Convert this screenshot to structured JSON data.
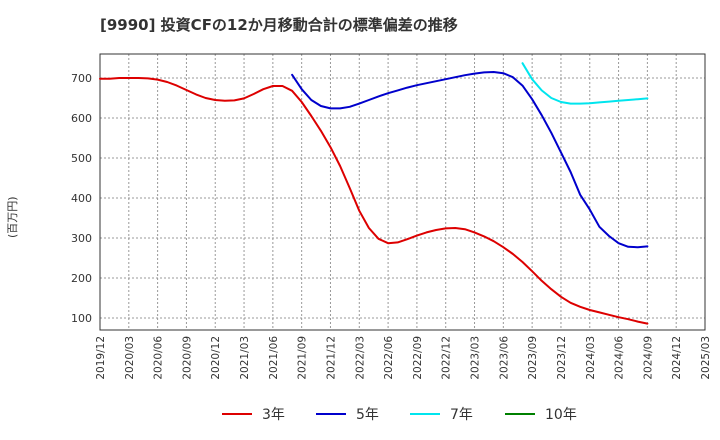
{
  "chart_data": {
    "type": "line",
    "title": "[9990]  投資CFの12か月移動合計の標準偏差の推移",
    "ylabel": "(百万円)",
    "xlabel": "",
    "ylim": [
      70,
      760
    ],
    "yticks": [
      100,
      200,
      300,
      400,
      500,
      600,
      700
    ],
    "grid": true,
    "legend_position": "bottom",
    "x_tick_labels": [
      "2019/12",
      "2020/03",
      "2020/06",
      "2020/09",
      "2020/12",
      "2021/03",
      "2021/06",
      "2021/09",
      "2021/12",
      "2022/03",
      "2022/06",
      "2022/09",
      "2022/12",
      "2023/03",
      "2023/06",
      "2023/09",
      "2023/12",
      "2024/03",
      "2024/06",
      "2024/09",
      "2024/12",
      "2025/03"
    ],
    "series": [
      {
        "name": "3年",
        "color": "#dd0000",
        "x": [
          "2019/12",
          "2020/01",
          "2020/02",
          "2020/03",
          "2020/04",
          "2020/05",
          "2020/06",
          "2020/07",
          "2020/08",
          "2020/09",
          "2020/10",
          "2020/11",
          "2020/12",
          "2021/01",
          "2021/02",
          "2021/03",
          "2021/04",
          "2021/05",
          "2021/06",
          "2021/07",
          "2021/08",
          "2021/09",
          "2021/10",
          "2021/11",
          "2021/12",
          "2022/01",
          "2022/02",
          "2022/03",
          "2022/04",
          "2022/05",
          "2022/06",
          "2022/07",
          "2022/08",
          "2022/09",
          "2022/10",
          "2022/11",
          "2022/12",
          "2023/01",
          "2023/02",
          "2023/03",
          "2023/04",
          "2023/05",
          "2023/06",
          "2023/07",
          "2023/08",
          "2023/09",
          "2023/10",
          "2023/11",
          "2023/12",
          "2024/01",
          "2024/02",
          "2024/03",
          "2024/04",
          "2024/05",
          "2024/06",
          "2024/07",
          "2024/08",
          "2024/09"
        ],
        "values": [
          698,
          698,
          700,
          700,
          700,
          699,
          696,
          690,
          681,
          670,
          659,
          650,
          645,
          643,
          644,
          649,
          660,
          672,
          680,
          680,
          668,
          640,
          605,
          568,
          527,
          480,
          425,
          368,
          325,
          298,
          287,
          289,
          297,
          306,
          314,
          320,
          324,
          325,
          322,
          314,
          304,
          292,
          277,
          260,
          240,
          217,
          193,
          172,
          153,
          138,
          128,
          120,
          114,
          108,
          102,
          97,
          91,
          86
        ]
      },
      {
        "name": "5年",
        "color": "#0000cc",
        "x": [
          "2021/08",
          "2021/09",
          "2021/10",
          "2021/11",
          "2021/12",
          "2022/01",
          "2022/02",
          "2022/03",
          "2022/04",
          "2022/05",
          "2022/06",
          "2022/07",
          "2022/08",
          "2022/09",
          "2022/10",
          "2022/11",
          "2022/12",
          "2023/01",
          "2023/02",
          "2023/03",
          "2023/04",
          "2023/05",
          "2023/06",
          "2023/07",
          "2023/08",
          "2023/09",
          "2023/10",
          "2023/11",
          "2023/12",
          "2024/01",
          "2024/02",
          "2024/03",
          "2024/04",
          "2024/05",
          "2024/06",
          "2024/07",
          "2024/08",
          "2024/09"
        ],
        "values": [
          708,
          672,
          645,
          630,
          624,
          624,
          628,
          636,
          645,
          654,
          662,
          669,
          676,
          682,
          687,
          692,
          697,
          702,
          707,
          711,
          714,
          715,
          712,
          702,
          681,
          647,
          607,
          563,
          514,
          465,
          408,
          371,
          328,
          305,
          287,
          278,
          277,
          279
        ]
      },
      {
        "name": "7年",
        "color": "#00e5ee",
        "x": [
          "2023/08",
          "2023/09",
          "2023/10",
          "2023/11",
          "2023/12",
          "2024/01",
          "2024/02",
          "2024/03",
          "2024/04",
          "2024/05",
          "2024/06",
          "2024/07",
          "2024/08",
          "2024/09"
        ],
        "values": [
          737,
          697,
          669,
          650,
          640,
          636,
          636,
          637,
          639,
          641,
          643,
          645,
          647,
          649
        ]
      },
      {
        "name": "10年",
        "color": "#008000",
        "x": [],
        "values": []
      }
    ]
  }
}
